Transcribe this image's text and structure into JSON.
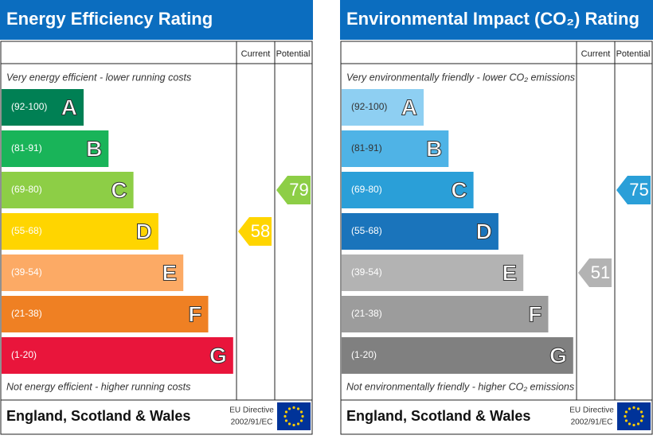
{
  "panels": [
    {
      "title": "Energy Efficiency Rating",
      "columns": [
        "Current",
        "Potential"
      ],
      "top_note": "Very energy efficient - lower running costs",
      "bottom_note": "Not energy efficient - higher running costs",
      "bands": [
        {
          "range": "(92-100)",
          "letter": "A",
          "color": "#008054"
        },
        {
          "range": "(81-91)",
          "letter": "B",
          "color": "#19b459"
        },
        {
          "range": "(69-80)",
          "letter": "C",
          "color": "#8dce46"
        },
        {
          "range": "(55-68)",
          "letter": "D",
          "color": "#ffd500"
        },
        {
          "range": "(39-54)",
          "letter": "E",
          "color": "#fcaa65"
        },
        {
          "range": "(21-38)",
          "letter": "F",
          "color": "#ef8023"
        },
        {
          "range": "(1-20)",
          "letter": "G",
          "color": "#e9153b"
        }
      ],
      "current": 58,
      "potential": 79,
      "region": "England, Scotland & Wales",
      "directive": [
        "EU Directive",
        "2002/91/EC"
      ]
    },
    {
      "title": "Environmental Impact (CO₂) Rating",
      "columns": [
        "Current",
        "Potential"
      ],
      "top_note": "Very environmentally friendly - lower CO₂ emissions",
      "bottom_note": "Not environmentally friendly - higher CO₂ emissions",
      "bands": [
        {
          "range": "(92-100)",
          "letter": "A",
          "color": "#8ecff2"
        },
        {
          "range": "(81-91)",
          "letter": "B",
          "color": "#4fb3e6"
        },
        {
          "range": "(69-80)",
          "letter": "C",
          "color": "#2a9fd8"
        },
        {
          "range": "(55-68)",
          "letter": "D",
          "color": "#1a74bb"
        },
        {
          "range": "(39-54)",
          "letter": "E",
          "color": "#b3b3b3"
        },
        {
          "range": "(21-38)",
          "letter": "F",
          "color": "#9c9c9c"
        },
        {
          "range": "(1-20)",
          "letter": "G",
          "color": "#808080"
        }
      ],
      "current": 51,
      "potential": 75,
      "region": "England, Scotland & Wales",
      "directive": [
        "EU Directive",
        "2002/91/EC"
      ]
    }
  ]
}
